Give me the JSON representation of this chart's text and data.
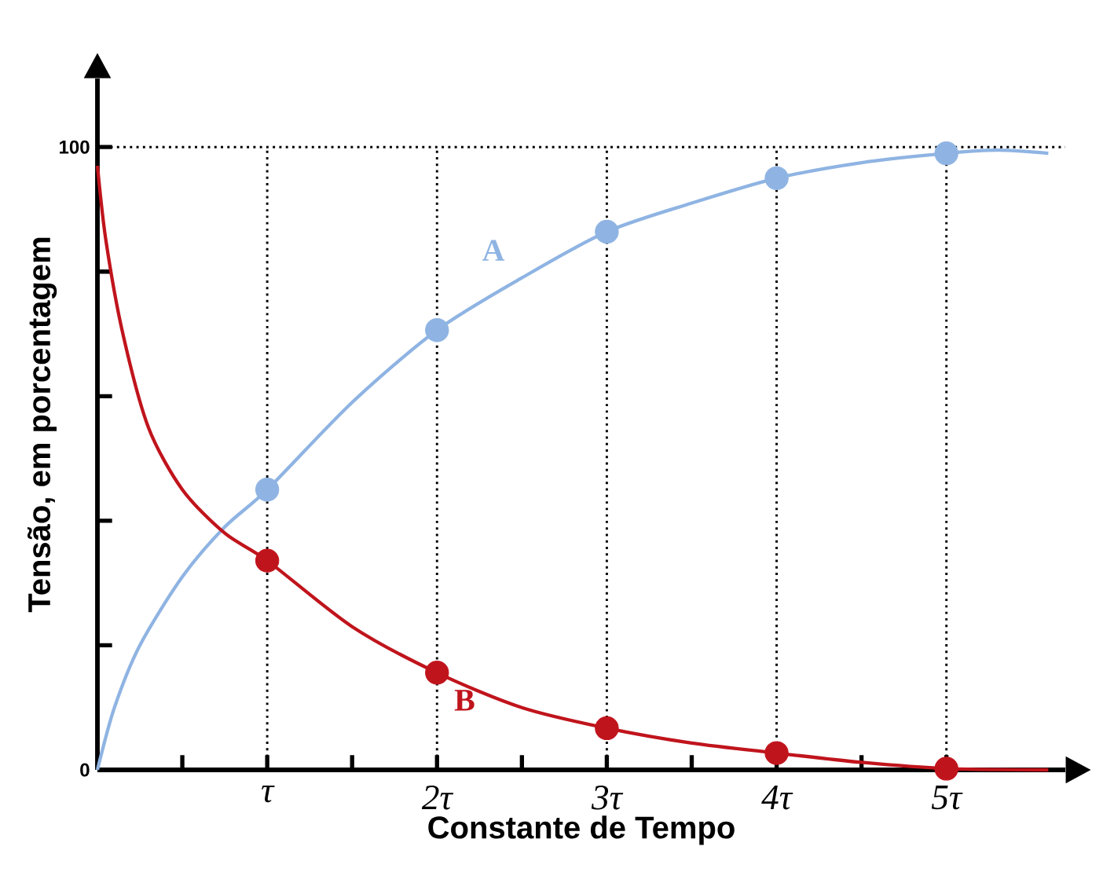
{
  "chart_data": {
    "type": "line",
    "xlabel": "Constante de Tempo",
    "ylabel": "Tensão, em porcentagem",
    "xlim": [
      0,
      5.7
    ],
    "ylim": [
      0,
      111
    ],
    "xticks": [
      {
        "value": 0.5,
        "label": null
      },
      {
        "value": 1,
        "label": "τ"
      },
      {
        "value": 1.5,
        "label": null
      },
      {
        "value": 2,
        "label": "2τ"
      },
      {
        "value": 2.5,
        "label": null
      },
      {
        "value": 3,
        "label": "3τ"
      },
      {
        "value": 3.5,
        "label": null
      },
      {
        "value": 4,
        "label": "4τ"
      },
      {
        "value": 4.5,
        "label": null
      },
      {
        "value": 5,
        "label": "5τ"
      }
    ],
    "yticks": [
      0,
      {
        "value": 20,
        "label": null
      },
      {
        "value": 40,
        "label": null
      },
      {
        "value": 60,
        "label": null
      },
      {
        "value": 80,
        "label": null
      },
      100
    ],
    "ref_lines": [
      {
        "axis": "y",
        "value": 100,
        "line_style": "dotted"
      },
      {
        "axis": "x",
        "value": 1,
        "line_style": "dotted"
      },
      {
        "axis": "x",
        "value": 2,
        "line_style": "dotted"
      },
      {
        "axis": "x",
        "value": 3,
        "line_style": "dotted"
      },
      {
        "axis": "x",
        "value": 4,
        "line_style": "dotted"
      },
      {
        "axis": "x",
        "value": 5,
        "line_style": "dotted"
      }
    ],
    "series": [
      {
        "name": "A",
        "color": "#8fb4e3",
        "marker": "none",
        "x": [
          0,
          0.1,
          0.25,
          0.5,
          0.75,
          1,
          1.5,
          2,
          2.5,
          3,
          3.5,
          4,
          4.5,
          5,
          5.3,
          5.6
        ],
        "values": [
          0,
          10,
          20,
          31,
          39,
          45,
          59,
          70.6,
          79,
          86.4,
          91,
          95,
          97.5,
          99,
          99.5,
          99
        ]
      },
      {
        "name": "B",
        "color": "#c0141c",
        "marker": "none",
        "x": [
          0,
          0.05,
          0.15,
          0.3,
          0.5,
          0.75,
          1,
          1.5,
          2,
          2.5,
          3,
          3.5,
          4,
          4.5,
          5,
          5.6
        ],
        "values": [
          97,
          85,
          70,
          55,
          45,
          38,
          33.6,
          23,
          15.6,
          10,
          6.7,
          4.3,
          2.7,
          1.2,
          0.2,
          0
        ]
      },
      {
        "type": "scatter",
        "color": "#8fb4e3",
        "marker": "circle",
        "x": [
          1,
          2,
          3,
          4,
          5
        ],
        "values": [
          45,
          70.6,
          86.4,
          95,
          99
        ]
      },
      {
        "type": "scatter",
        "color": "#c0141c",
        "marker": "circle",
        "x": [
          1,
          2,
          3,
          4,
          5
        ],
        "values": [
          33.6,
          15.6,
          6.7,
          2.7,
          0.2
        ]
      }
    ]
  }
}
